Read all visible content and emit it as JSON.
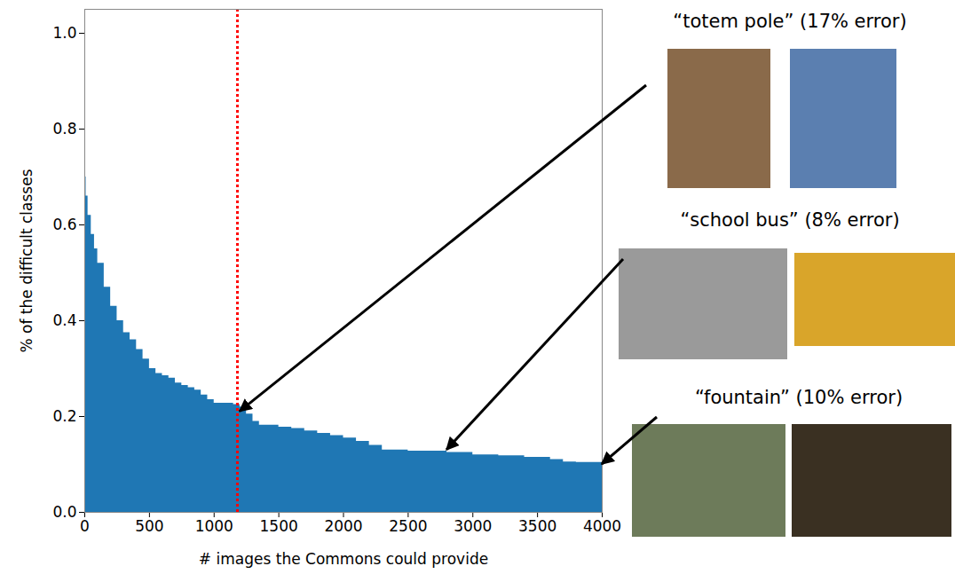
{
  "chart_data": {
    "type": "area",
    "x_label": "# images the Commons could provide",
    "y_label": "% of the difficult classes",
    "x": [
      0,
      10,
      25,
      50,
      75,
      100,
      150,
      200,
      250,
      300,
      350,
      400,
      450,
      500,
      550,
      600,
      650,
      700,
      750,
      800,
      850,
      900,
      950,
      1000,
      1100,
      1150,
      1200,
      1250,
      1300,
      1350,
      1500,
      1600,
      1700,
      1800,
      1900,
      2000,
      2100,
      2200,
      2300,
      2500,
      2700,
      2800,
      3000,
      3200,
      3400,
      3600,
      3700,
      3800,
      4000
    ],
    "values": [
      0.7,
      0.66,
      0.62,
      0.58,
      0.55,
      0.52,
      0.47,
      0.43,
      0.4,
      0.375,
      0.36,
      0.34,
      0.32,
      0.3,
      0.29,
      0.285,
      0.28,
      0.27,
      0.265,
      0.26,
      0.255,
      0.245,
      0.235,
      0.228,
      0.228,
      0.225,
      0.22,
      0.205,
      0.19,
      0.182,
      0.178,
      0.175,
      0.17,
      0.165,
      0.16,
      0.155,
      0.148,
      0.14,
      0.13,
      0.128,
      0.128,
      0.125,
      0.12,
      0.118,
      0.115,
      0.11,
      0.105,
      0.104,
      0.104
    ],
    "color": "#1f77b4",
    "xlim": [
      0,
      4000
    ],
    "xticks": [
      0,
      500,
      1000,
      1500,
      2000,
      2500,
      3000,
      3500,
      4000
    ],
    "ylim": [
      0,
      1.05
    ],
    "yticks": [
      {
        "value": 0,
        "label": "0.0"
      },
      {
        "value": 0.2,
        "label": "0.2"
      },
      {
        "value": 0.4,
        "label": "0.4"
      },
      {
        "value": 0.6,
        "label": "0.6"
      },
      {
        "value": 0.8,
        "label": "0.8"
      },
      {
        "value": 1.0,
        "label": "1.0"
      }
    ],
    "grid": false,
    "vline": {
      "x": 1180,
      "color": "#ff0000",
      "line_style": "dotted"
    },
    "annotations": [
      {
        "text": "“totem pole” (17% error)",
        "x": 1200,
        "y": 0.21
      },
      {
        "text": "“school bus” (8% error)",
        "x": 2800,
        "y": 0.13
      },
      {
        "text": "“fountain” (10% error)",
        "x": 4000,
        "y": 0.1
      }
    ]
  }
}
